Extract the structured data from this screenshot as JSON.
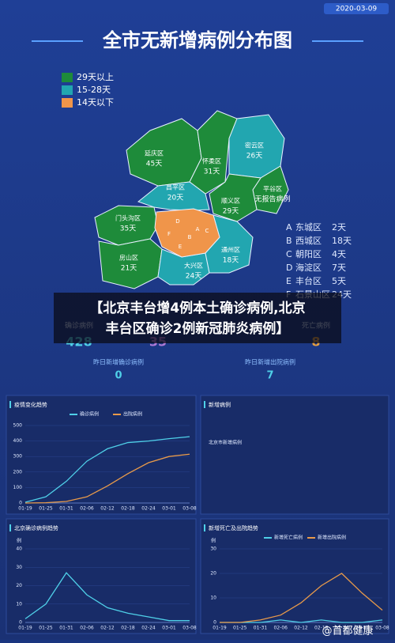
{
  "date": "2020-03-09",
  "title": "全市无新增病例分布图",
  "legend": [
    {
      "label": "29天以上",
      "color": "#1e8b3a"
    },
    {
      "label": "15-28天",
      "color": "#22a6b0"
    },
    {
      "label": "14天以下",
      "color": "#f0954a"
    }
  ],
  "districts": [
    {
      "name": "延庆区",
      "days": "45天"
    },
    {
      "name": "怀柔区",
      "days": "31天"
    },
    {
      "name": "密云区",
      "days": "26天"
    },
    {
      "name": "平谷区",
      "days": "无报告病例"
    },
    {
      "name": "顺义区",
      "days": "29天"
    },
    {
      "name": "昌平区",
      "days": "20天"
    },
    {
      "name": "门头沟区",
      "days": "35天"
    },
    {
      "name": "房山区",
      "days": "21天"
    },
    {
      "name": "大兴区",
      "days": "24天"
    },
    {
      "name": "通州区",
      "days": "18天"
    }
  ],
  "inner_districts": [
    {
      "letter": "A",
      "name": "东城区",
      "days": "2天"
    },
    {
      "letter": "B",
      "name": "西城区",
      "days": "18天"
    },
    {
      "letter": "C",
      "name": "朝阳区",
      "days": "4天"
    },
    {
      "letter": "D",
      "name": "海淀区",
      "days": "7天"
    },
    {
      "letter": "E",
      "name": "丰台区",
      "days": "5天"
    },
    {
      "letter": "F",
      "name": "石景山区",
      "days": "24天"
    }
  ],
  "headline": [
    "【北京丰台增4例本土确诊病例,北京",
    "丰台区确诊2例新冠肺炎病例】"
  ],
  "stats": [
    {
      "label": "确诊病例",
      "value": 428
    },
    {
      "value": 35
    },
    {
      "label": "死亡病例",
      "value": 8
    }
  ],
  "yesterday": [
    {
      "label": "昨日新增确诊病例",
      "value": 0
    },
    {
      "label": "昨日新增出院病例",
      "value": 7
    }
  ],
  "watermark": "@首都健康",
  "chart_data": [
    {
      "type": "line",
      "title": "疫情变化趋势",
      "categories": [
        "01-19",
        "01-25",
        "01-31",
        "02-06",
        "02-12",
        "02-18",
        "02-24",
        "03-01",
        "03-08"
      ],
      "series": [
        {
          "name": "确诊病例",
          "color": "#4fd0e8",
          "values": [
            5,
            40,
            140,
            270,
            350,
            390,
            400,
            415,
            428
          ]
        },
        {
          "name": "出院病例",
          "color": "#e89a4a",
          "values": [
            0,
            2,
            10,
            40,
            110,
            190,
            260,
            300,
            315
          ]
        }
      ],
      "ylim": [
        0,
        500
      ],
      "yticks": [
        0,
        100,
        200,
        300,
        400,
        500
      ]
    },
    {
      "type": "line",
      "title": "北京确诊病例趋势",
      "y_label": "例",
      "categories": [
        "01-19",
        "01-25",
        "01-31",
        "02-06",
        "02-12",
        "02-18",
        "02-24",
        "03-01",
        "03-08"
      ],
      "series": [
        {
          "color": "#4fd0e8",
          "values": [
            2,
            10,
            27,
            15,
            8,
            5,
            3,
            1,
            1
          ]
        }
      ],
      "ylim": [
        0,
        40
      ],
      "yticks": [
        0,
        10,
        20,
        30,
        40
      ]
    },
    {
      "type": "line",
      "title": "新增病例",
      "series": [
        {
          "name": "北京市新增病例",
          "values": []
        }
      ]
    },
    {
      "type": "line",
      "title": "新增死亡及出院趋势",
      "y_label": "例",
      "categories": [
        "01-19",
        "01-25",
        "01-31",
        "02-06",
        "02-12",
        "02-18",
        "02-24",
        "03-01",
        "03-08"
      ],
      "series": [
        {
          "name": "新增死亡病例",
          "color": "#4fd0e8",
          "values": [
            0,
            0,
            0,
            1,
            0,
            1,
            0,
            0,
            1
          ]
        },
        {
          "name": "新增出院病例",
          "color": "#e89a4a",
          "values": [
            0,
            0,
            1,
            3,
            8,
            15,
            20,
            12,
            5
          ]
        }
      ],
      "ylim": [
        0,
        30
      ],
      "yticks": [
        0,
        10,
        20,
        30
      ]
    }
  ]
}
